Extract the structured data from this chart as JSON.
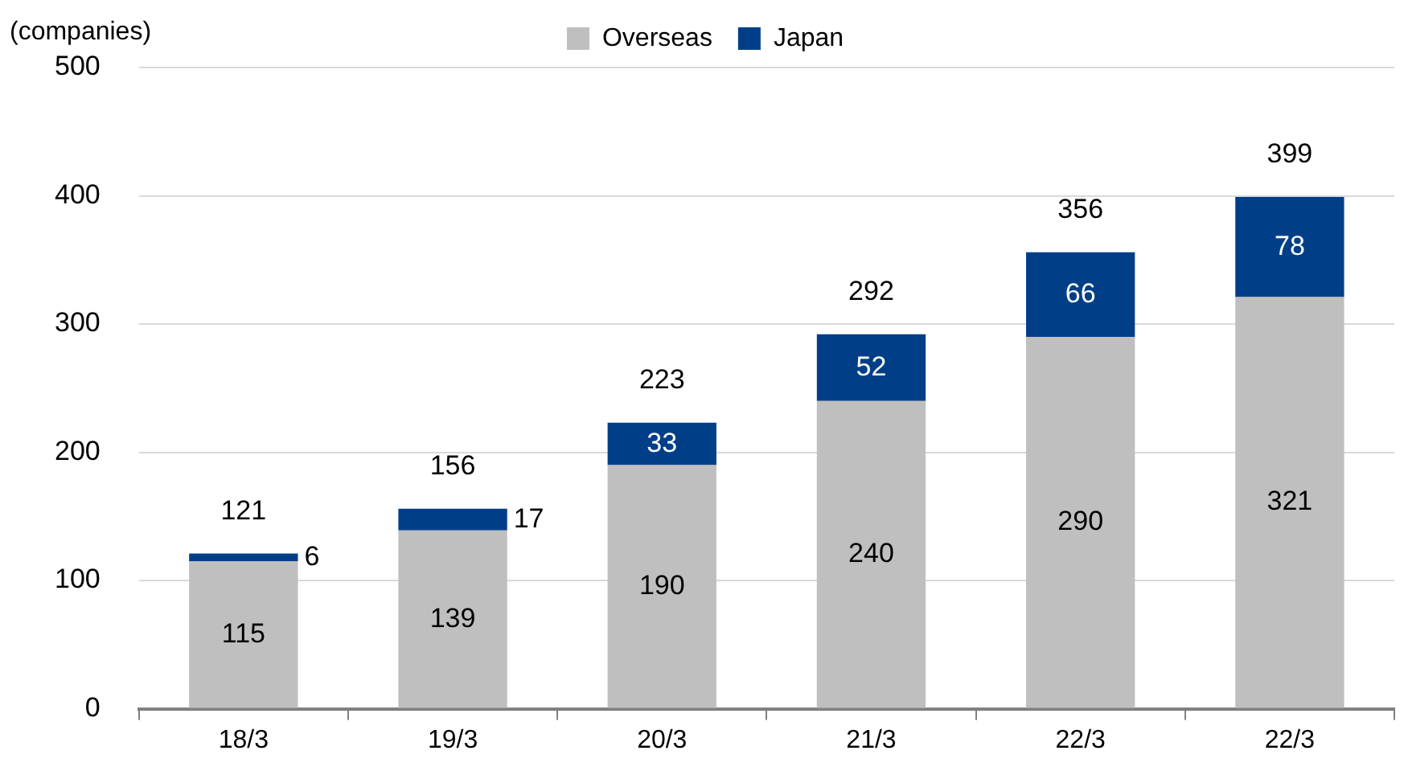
{
  "chart_data": {
    "type": "bar",
    "ylabel": "(companies)",
    "stacked": true,
    "categories": [
      "18/3",
      "19/3",
      "20/3",
      "21/3",
      "22/3",
      "22/3"
    ],
    "series": [
      {
        "name": "Overseas",
        "color": "#bfbfbf",
        "values": [
          115,
          139,
          190,
          240,
          290,
          321
        ]
      },
      {
        "name": "Japan",
        "color": "#003f87",
        "values": [
          6,
          17,
          33,
          52,
          66,
          78
        ]
      }
    ],
    "totals": [
      "121",
      "156",
      "223",
      "292",
      "356",
      "399"
    ],
    "data_labels": true,
    "ylim": [
      0,
      500
    ],
    "yticks": [
      0,
      100,
      200,
      300,
      400,
      500
    ],
    "grid": "y",
    "legend": "top"
  }
}
